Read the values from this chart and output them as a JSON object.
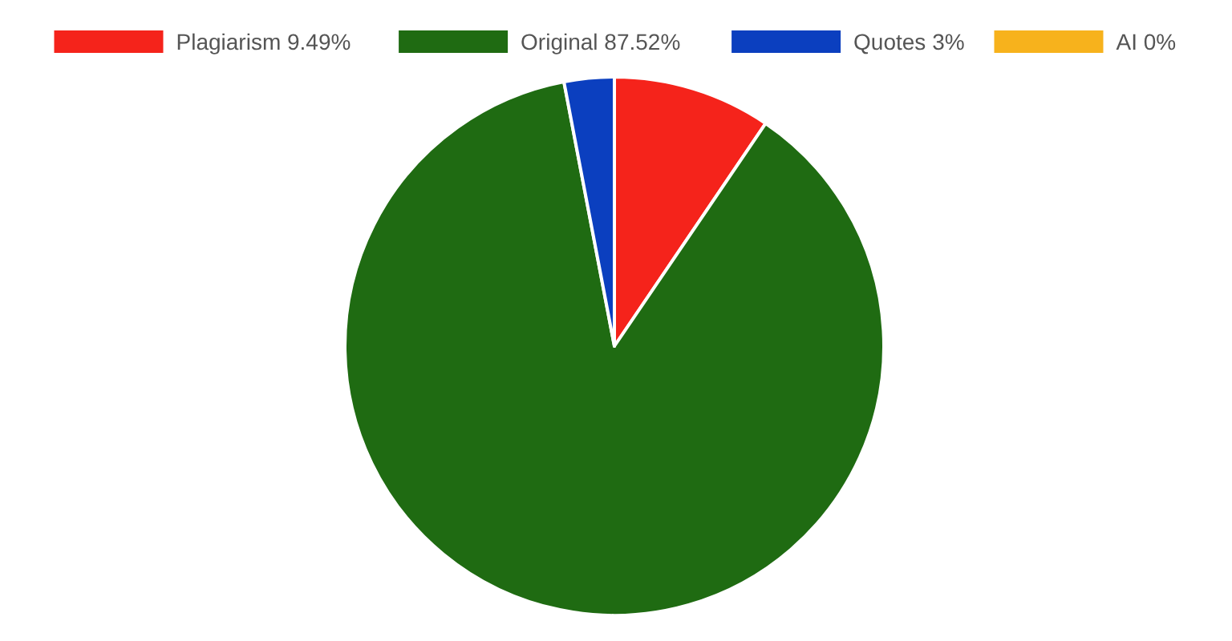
{
  "chart_data": {
    "type": "pie",
    "categories": [
      "Plagiarism 9.49%",
      "Original 87.52%",
      "Quotes 3%",
      "AI 0%"
    ],
    "values": [
      9.49,
      87.52,
      3,
      0
    ],
    "colors": [
      "#f5231b",
      "#1f6b12",
      "#0b3fbf",
      "#f7b21c"
    ],
    "legend": "top"
  }
}
